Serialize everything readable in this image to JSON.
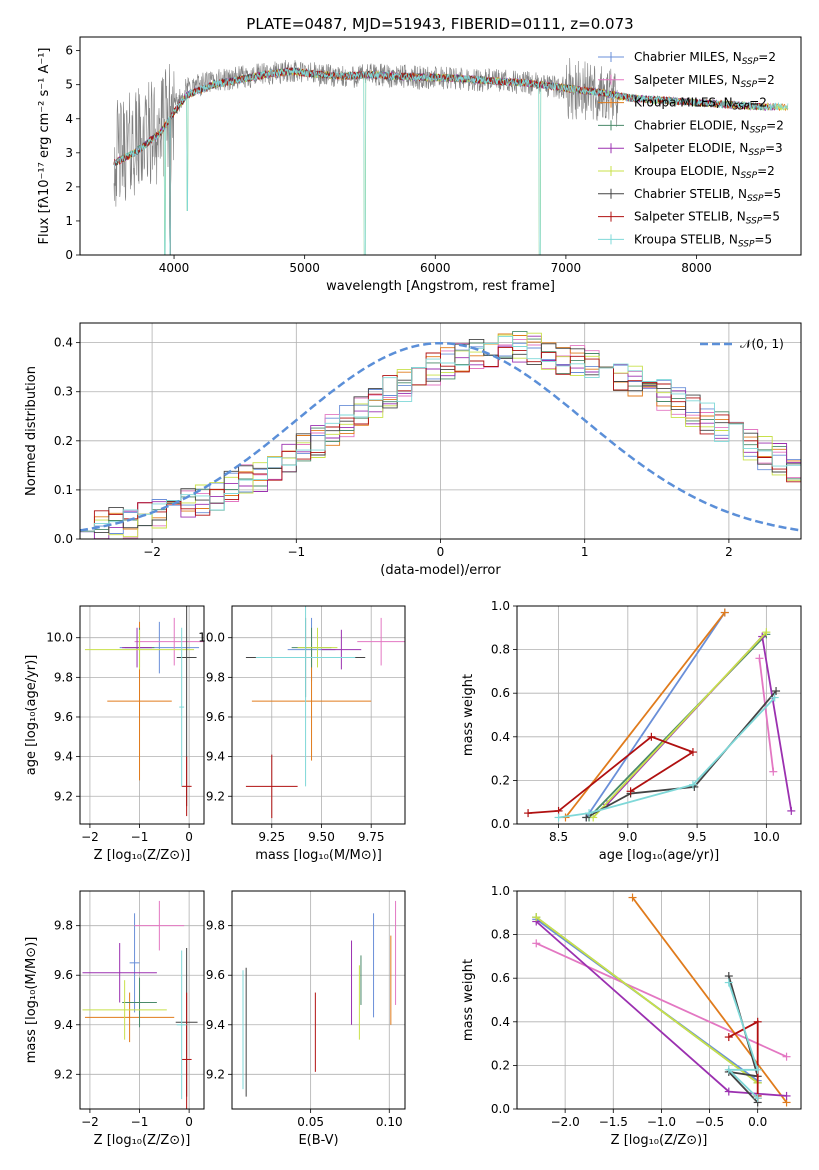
{
  "figure": {
    "title": "PLATE=0487, MJD=51943, FIBERID=0111, z=0.073"
  },
  "legend_entries": [
    {
      "label": "Chabrier MILES, N",
      "sub": "SSP",
      "suffix": "=2",
      "color": "#6a8fd8"
    },
    {
      "label": "Salpeter MILES, N",
      "sub": "SSP",
      "suffix": "=2",
      "color": "#e377c2"
    },
    {
      "label": "Kroupa MILES, N",
      "sub": "SSP",
      "suffix": "=2",
      "color": "#e07b1c"
    },
    {
      "label": "Chabrier ELODIE, N",
      "sub": "SSP",
      "suffix": "=2",
      "color": "#4a8a6a"
    },
    {
      "label": "Salpeter ELODIE, N",
      "sub": "SSP",
      "suffix": "=3",
      "color": "#9b30b0"
    },
    {
      "label": "Kroupa ELODIE, N",
      "sub": "SSP",
      "suffix": "=2",
      "color": "#c8e04a"
    },
    {
      "label": "Chabrier STELIB, N",
      "sub": "SSP",
      "suffix": "=5",
      "color": "#444444"
    },
    {
      "label": "Salpeter STELIB, N",
      "sub": "SSP",
      "suffix": "=5",
      "color": "#b01010"
    },
    {
      "label": "Kroupa STELIB, N",
      "sub": "SSP",
      "suffix": "=5",
      "color": "#7fd8d8"
    }
  ],
  "chart_data": [
    {
      "id": "spectrum",
      "type": "line",
      "xlabel": "wavelength [Angstrom, rest frame]",
      "ylabel": "Flux [fλ10⁻¹⁷ erg cm⁻² s⁻¹ A⁻¹]",
      "xlim": [
        3280,
        8800
      ],
      "ylim": [
        0,
        6.4
      ],
      "xticks": [
        4000,
        5000,
        6000,
        7000,
        8000
      ],
      "yticks": [
        0,
        1,
        2,
        3,
        4,
        5,
        6
      ],
      "data_color": "#808080",
      "continuum": [
        [
          3540,
          2.9
        ],
        [
          3700,
          3.3
        ],
        [
          3900,
          3.7
        ],
        [
          4000,
          4.3
        ],
        [
          4100,
          4.9
        ],
        [
          4300,
          5.1
        ],
        [
          4500,
          5.2
        ],
        [
          4700,
          5.3
        ],
        [
          4900,
          5.4
        ],
        [
          5100,
          5.3
        ],
        [
          5300,
          5.2
        ],
        [
          5500,
          5.3
        ],
        [
          5700,
          5.25
        ],
        [
          5900,
          5.2
        ],
        [
          6100,
          5.2
        ],
        [
          6300,
          5.15
        ],
        [
          6500,
          5.1
        ],
        [
          6700,
          5.05
        ],
        [
          6900,
          4.95
        ],
        [
          7100,
          4.85
        ],
        [
          7300,
          4.7
        ],
        [
          7400,
          4.6
        ]
      ],
      "model_continuum": [
        [
          3540,
          2.7
        ],
        [
          3700,
          3.0
        ],
        [
          3900,
          3.6
        ],
        [
          4000,
          4.2
        ],
        [
          4100,
          4.7
        ],
        [
          4300,
          5.0
        ],
        [
          4500,
          5.15
        ],
        [
          4700,
          5.3
        ],
        [
          4900,
          5.4
        ],
        [
          5100,
          5.3
        ],
        [
          5300,
          5.25
        ],
        [
          5500,
          5.3
        ],
        [
          5700,
          5.25
        ],
        [
          5900,
          5.22
        ],
        [
          6100,
          5.2
        ],
        [
          6300,
          5.15
        ],
        [
          6500,
          5.1
        ],
        [
          6700,
          5.05
        ],
        [
          6900,
          4.95
        ],
        [
          7100,
          4.85
        ],
        [
          7300,
          4.75
        ],
        [
          7500,
          4.6
        ],
        [
          7700,
          4.55
        ],
        [
          7900,
          4.5
        ],
        [
          8100,
          4.45
        ],
        [
          8300,
          4.4
        ],
        [
          8500,
          4.35
        ]
      ],
      "dips": [
        [
          3930,
          0
        ],
        [
          3970,
          0
        ],
        [
          4102,
          1.3
        ],
        [
          5460,
          0
        ],
        [
          6800,
          0
        ]
      ]
    },
    {
      "id": "residual-histogram",
      "type": "histogram",
      "xlabel": "(data-model)/error",
      "ylabel": "Normed distribution",
      "xlim": [
        -2.5,
        2.5
      ],
      "ylim": [
        0,
        0.44
      ],
      "xticks": [
        -2,
        -1,
        0,
        1,
        2
      ],
      "yticks": [
        0.0,
        0.1,
        0.2,
        0.3,
        0.4
      ],
      "bin_edges_start": -2.5,
      "bin_width": 0.1,
      "base_values": [
        0.025,
        0.027,
        0.03,
        0.035,
        0.04,
        0.05,
        0.058,
        0.07,
        0.08,
        0.092,
        0.105,
        0.118,
        0.13,
        0.15,
        0.165,
        0.185,
        0.2,
        0.22,
        0.24,
        0.26,
        0.28,
        0.3,
        0.315,
        0.33,
        0.345,
        0.355,
        0.365,
        0.375,
        0.38,
        0.385,
        0.39,
        0.385,
        0.375,
        0.37,
        0.36,
        0.355,
        0.345,
        0.335,
        0.32,
        0.305,
        0.29,
        0.275,
        0.26,
        0.245,
        0.228,
        0.21,
        0.19,
        0.175,
        0.16,
        0.145,
        0.13,
        0.115,
        0.105,
        0.095,
        0.085,
        0.077,
        0.07,
        0.065,
        0.06,
        0.055,
        0.05,
        0.045,
        0.045,
        0.04,
        0.04,
        0.038,
        0.035,
        0.035,
        0.033,
        0.032
      ],
      "normal_curve": {
        "label": "𝒩(0, 1)",
        "mu": 0,
        "sigma": 1,
        "color": "#5b8fd8"
      }
    },
    {
      "id": "age-vs-Z",
      "type": "errorbar",
      "xlabel": "Z [log₁₀(Z/Z⊙)]",
      "ylabel": "age  [log₁₀(age/yr)]",
      "xlim": [
        -2.2,
        0.3
      ],
      "ylim": [
        9.06,
        10.16
      ],
      "xticks": [
        -2,
        -1,
        0
      ],
      "yticks": [
        9.2,
        9.4,
        9.6,
        9.8,
        10.0
      ],
      "points": [
        {
          "series": 0,
          "x": -0.6,
          "y": 9.95,
          "xerr": 0.8,
          "yerr": 0.13
        },
        {
          "series": 1,
          "x": -0.3,
          "y": 9.98,
          "xerr": 0.8,
          "yerr": 0.12
        },
        {
          "series": 2,
          "x": -1.0,
          "y": 9.68,
          "xerr": 0.65,
          "yerr": 0.4
        },
        {
          "series": 3,
          "x": -1.0,
          "y": 9.95,
          "xerr": 0.3,
          "yerr": 0.1
        },
        {
          "series": 4,
          "x": -1.05,
          "y": 9.95,
          "xerr": 0.3,
          "yerr": 0.1
        },
        {
          "series": 5,
          "x": -1.0,
          "y": 9.94,
          "xerr": 1.1,
          "yerr": 0.1
        },
        {
          "series": 6,
          "x": -0.05,
          "y": 9.9,
          "xerr": 0.2,
          "yerr": 0.75
        },
        {
          "series": 7,
          "x": -0.05,
          "y": 9.25,
          "xerr": 0.1,
          "yerr": 0.15
        },
        {
          "series": 8,
          "x": -0.15,
          "y": 9.65,
          "xerr": 0.05,
          "yerr": 0.4
        }
      ]
    },
    {
      "id": "age-vs-mass",
      "type": "errorbar",
      "xlabel": "mass [log₁₀(M/M⊙)]",
      "ylabel": "",
      "xlim": [
        9.05,
        9.92
      ],
      "ylim": [
        9.06,
        10.16
      ],
      "xticks": [
        9.25,
        9.5,
        9.75
      ],
      "yticks": [
        9.2,
        9.4,
        9.6,
        9.8,
        10.0
      ],
      "points": [
        {
          "series": 0,
          "x": 9.45,
          "y": 9.94,
          "xerr": 0.12,
          "yerr": 0.16
        },
        {
          "series": 1,
          "x": 9.8,
          "y": 9.98,
          "xerr": 0.12,
          "yerr": 0.12
        },
        {
          "series": 2,
          "x": 9.45,
          "y": 9.68,
          "xerr": 0.3,
          "yerr": 0.3
        },
        {
          "series": 3,
          "x": 9.45,
          "y": 9.95,
          "xerr": 0.1,
          "yerr": 0.1
        },
        {
          "series": 4,
          "x": 9.6,
          "y": 9.94,
          "xerr": 0.1,
          "yerr": 0.1
        },
        {
          "series": 5,
          "x": 9.48,
          "y": 9.95,
          "xerr": 0.1,
          "yerr": 0.1
        },
        {
          "series": 6,
          "x": 9.42,
          "y": 9.9,
          "xerr": 0.3,
          "yerr": 0.2
        },
        {
          "series": 7,
          "x": 9.25,
          "y": 9.25,
          "xerr": 0.13,
          "yerr": 0.16
        },
        {
          "series": 8,
          "x": 9.42,
          "y": 9.9,
          "xerr": 0.25,
          "yerr": 0.65
        }
      ]
    },
    {
      "id": "weight-vs-age",
      "type": "line",
      "xlabel": "age  [log₁₀(age/yr)]",
      "ylabel": "mass weight",
      "xlim": [
        8.2,
        10.25
      ],
      "ylim": [
        0,
        1.0
      ],
      "xticks": [
        8.5,
        9.0,
        9.5,
        10.0
      ],
      "yticks": [
        0.0,
        0.2,
        0.4,
        0.6,
        0.8,
        1.0
      ],
      "series": [
        {
          "series": 0,
          "x": [
            8.7,
            9.7
          ],
          "y": [
            0.03,
            0.97
          ]
        },
        {
          "series": 1,
          "x": [
            9.95,
            10.05
          ],
          "y": [
            0.76,
            0.24
          ]
        },
        {
          "series": 2,
          "x": [
            8.55,
            9.7
          ],
          "y": [
            0.03,
            0.97
          ]
        },
        {
          "series": 3,
          "x": [
            8.72,
            10.0
          ],
          "y": [
            0.03,
            0.87
          ]
        },
        {
          "series": 4,
          "x": [
            8.85,
            9.97,
            10.18
          ],
          "y": [
            0.09,
            0.86,
            0.06
          ]
        },
        {
          "series": 5,
          "x": [
            8.75,
            10.0
          ],
          "y": [
            0.03,
            0.88
          ]
        },
        {
          "series": 6,
          "x": [
            8.7,
            9.02,
            9.48,
            10.07
          ],
          "y": [
            0.03,
            0.14,
            0.17,
            0.61
          ]
        },
        {
          "series": 7,
          "x": [
            8.28,
            8.5,
            9.17,
            9.47,
            9.02
          ],
          "y": [
            0.05,
            0.06,
            0.4,
            0.33,
            0.15
          ]
        },
        {
          "series": 8,
          "x": [
            8.5,
            8.72,
            9.47,
            10.06
          ],
          "y": [
            0.03,
            0.05,
            0.18,
            0.58
          ]
        }
      ]
    },
    {
      "id": "mass-vs-Z",
      "type": "errorbar",
      "xlabel": "Z [log₁₀(Z/Z⊙)]",
      "ylabel": "mass [log₁₀(M/M⊙)]",
      "xlim": [
        -2.2,
        0.3
      ],
      "ylim": [
        9.06,
        9.94
      ],
      "xticks": [
        -2,
        -1,
        0
      ],
      "yticks": [
        9.2,
        9.4,
        9.6,
        9.8
      ],
      "points": [
        {
          "series": 0,
          "x": -1.1,
          "y": 9.65,
          "xerr": 0.1,
          "yerr": 0.2
        },
        {
          "series": 1,
          "x": -0.6,
          "y": 9.8,
          "xerr": 0.5,
          "yerr": 0.1
        },
        {
          "series": 2,
          "x": -1.2,
          "y": 9.43,
          "xerr": 0.9,
          "yerr": 0.1
        },
        {
          "series": 3,
          "x": -1.0,
          "y": 9.49,
          "xerr": 0.35,
          "yerr": 0.1
        },
        {
          "series": 4,
          "x": -1.4,
          "y": 9.61,
          "xerr": 0.75,
          "yerr": 0.12
        },
        {
          "series": 5,
          "x": -1.3,
          "y": 9.46,
          "xerr": 0.85,
          "yerr": 0.12
        },
        {
          "series": 6,
          "x": -0.05,
          "y": 9.41,
          "xerr": 0.22,
          "yerr": 0.3
        },
        {
          "series": 7,
          "x": -0.05,
          "y": 9.26,
          "xerr": 0.1,
          "yerr": 0.27
        },
        {
          "series": 8,
          "x": -0.15,
          "y": 9.4,
          "xerr": 0.1,
          "yerr": 0.3
        }
      ]
    },
    {
      "id": "mass-vs-EBV",
      "type": "errorbar",
      "xlabel": "E(B-V)",
      "ylabel": "",
      "xlim": [
        0.0,
        0.11
      ],
      "ylim": [
        9.06,
        9.94
      ],
      "xticks": [
        0.05,
        0.1
      ],
      "yticks": [
        9.2,
        9.4,
        9.6,
        9.8
      ],
      "points": [
        {
          "series": 0,
          "x": 0.09,
          "y": 9.64,
          "xerr": 0,
          "yerr": 0.21
        },
        {
          "series": 1,
          "x": 0.104,
          "y": 9.69,
          "xerr": 0,
          "yerr": 0.21
        },
        {
          "series": 2,
          "x": 0.101,
          "y": 9.58,
          "xerr": 0,
          "yerr": 0.18
        },
        {
          "series": 3,
          "x": 0.082,
          "y": 9.58,
          "xerr": 0,
          "yerr": 0.1
        },
        {
          "series": 4,
          "x": 0.076,
          "y": 9.57,
          "xerr": 0,
          "yerr": 0.17
        },
        {
          "series": 5,
          "x": 0.081,
          "y": 9.49,
          "xerr": 0,
          "yerr": 0.15
        },
        {
          "series": 6,
          "x": 0.009,
          "y": 9.37,
          "xerr": 0,
          "yerr": 0.26
        },
        {
          "series": 7,
          "x": 0.053,
          "y": 9.37,
          "xerr": 0,
          "yerr": 0.16
        },
        {
          "series": 8,
          "x": 0.007,
          "y": 9.38,
          "xerr": 0,
          "yerr": 0.24
        }
      ]
    },
    {
      "id": "weight-vs-Z",
      "type": "line",
      "xlabel": "Z [log₁₀(Z/Z⊙)]",
      "ylabel": "mass weight",
      "xlim": [
        -2.5,
        0.45
      ],
      "ylim": [
        0,
        1.0
      ],
      "xticks": [
        -2.0,
        -1.5,
        -1.0,
        -0.5,
        0.0
      ],
      "yticks": [
        0.0,
        0.2,
        0.4,
        0.6,
        0.8,
        1.0
      ],
      "series": [
        {
          "series": 0,
          "x": [
            -2.3,
            0.0
          ],
          "y": [
            0.87,
            0.13
          ]
        },
        {
          "series": 1,
          "x": [
            -2.3,
            0.3
          ],
          "y": [
            0.76,
            0.24
          ]
        },
        {
          "series": 2,
          "x": [
            -1.3,
            0.3
          ],
          "y": [
            0.97,
            0.03
          ]
        },
        {
          "series": 3,
          "x": [
            -2.3,
            0.0
          ],
          "y": [
            0.88,
            0.12
          ]
        },
        {
          "series": 4,
          "x": [
            -2.3,
            -0.3,
            0.3
          ],
          "y": [
            0.86,
            0.08,
            0.06
          ]
        },
        {
          "series": 5,
          "x": [
            -2.3,
            0.0
          ],
          "y": [
            0.88,
            0.12
          ]
        },
        {
          "series": 6,
          "x": [
            -0.3,
            0.0,
            -0.3,
            0.0
          ],
          "y": [
            0.61,
            0.15,
            0.17,
            0.03
          ]
        },
        {
          "series": 7,
          "x": [
            -0.3,
            0.0,
            0.0,
            0.0
          ],
          "y": [
            0.33,
            0.4,
            0.06,
            0.05
          ]
        },
        {
          "series": 8,
          "x": [
            -0.3,
            0.0,
            -0.3,
            0.0
          ],
          "y": [
            0.58,
            0.18,
            0.18,
            0.05
          ]
        }
      ]
    }
  ]
}
